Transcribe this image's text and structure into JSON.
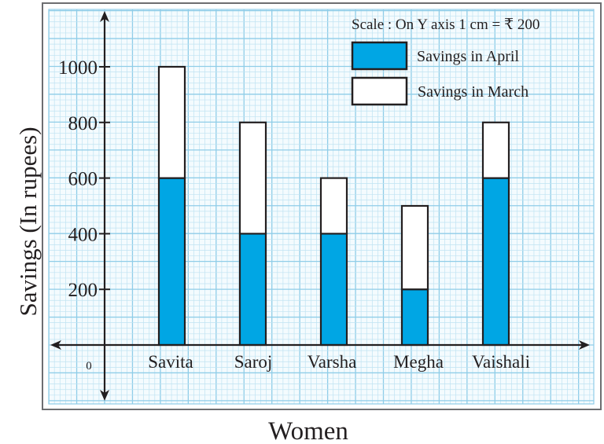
{
  "chart_data": {
    "type": "bar",
    "stacked": true,
    "title": "",
    "scale_note": "Scale : On Y axis 1 cm = ₹ 200",
    "xlabel": "Women",
    "ylabel": "Savings (In rupees)",
    "categories": [
      "Savita",
      "Saroj",
      "Varsha",
      "Megha",
      "Vaishali"
    ],
    "series": [
      {
        "name": "Savings in April",
        "color": "#00a6e4",
        "values": [
          600,
          400,
          400,
          200,
          600
        ]
      },
      {
        "name": "Savings in March",
        "color": "#ffffff",
        "values": [
          400,
          400,
          200,
          300,
          200
        ]
      }
    ],
    "totals": [
      1000,
      800,
      600,
      500,
      800
    ],
    "ylim": [
      0,
      1000
    ],
    "yticks": [
      200,
      400,
      600,
      800,
      1000
    ],
    "ytick_labels": [
      "200",
      "400",
      "600",
      "800",
      "1000"
    ],
    "origin_label": "0",
    "grid": true,
    "grid_style": "graph paper",
    "legend_position": "top-right"
  },
  "colors": {
    "grid_major": "#8fcde8",
    "grid_minor": "#bfe3f2",
    "axis": "#231f20",
    "frame": "#6d6e71",
    "april": "#00a6e4",
    "march": "#ffffff"
  }
}
